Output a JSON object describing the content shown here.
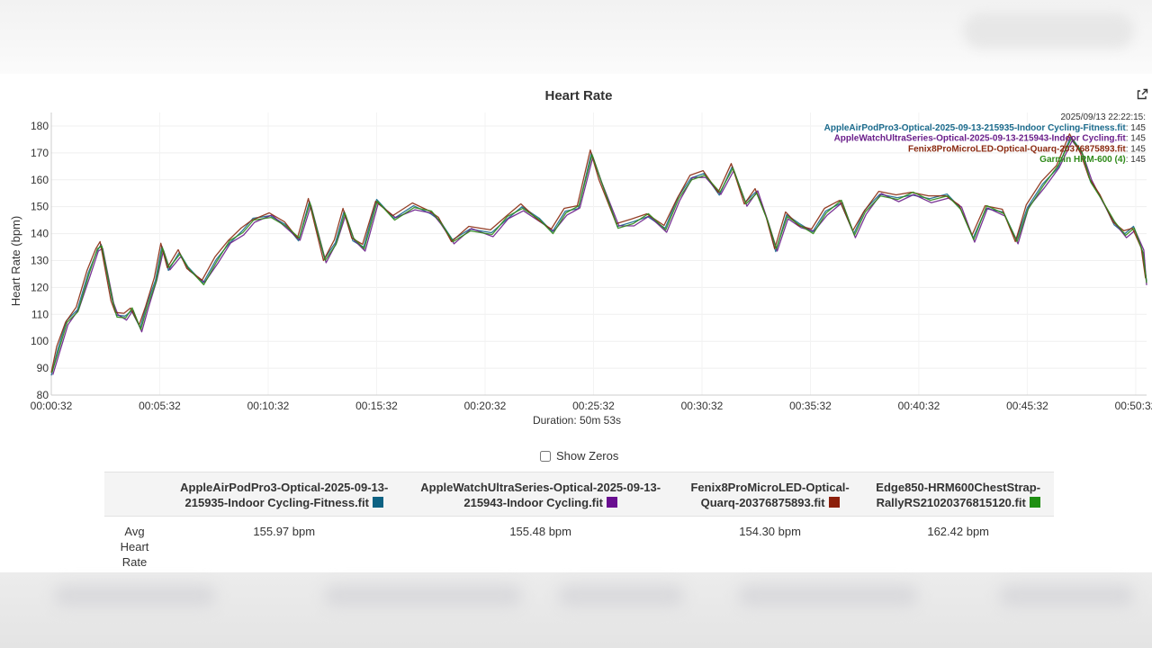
{
  "chart_data": {
    "type": "line",
    "title": "Heart Rate",
    "xlabel": "Duration: 50m 53s",
    "ylabel": "Heart Rate (bpm)",
    "ylim": [
      80,
      185
    ],
    "xlim": [
      0.5,
      51
    ],
    "x_unit": "minutes",
    "yticks": [
      80,
      90,
      100,
      110,
      120,
      130,
      140,
      150,
      160,
      170,
      180
    ],
    "xtick_labels": [
      "00:00:32",
      "00:05:32",
      "00:10:32",
      "00:15:32",
      "00:20:32",
      "00:25:32",
      "00:30:32",
      "00:35:32",
      "00:40:32",
      "00:45:32",
      "00:50:32"
    ],
    "grid": true,
    "legend": "top-right",
    "tooltip": {
      "timestamp": "2025/09/13 22:22:15:",
      "entries": [
        {
          "label": "AppleAirPodPro3-Optical-2025-09-13-215935-Indoor Cycling-Fitness.fit",
          "value": ": 145",
          "color": "#1a6a8c"
        },
        {
          "label": "AppleWatchUltraSeries-Optical-2025-09-13-215943-Indoor Cycling.fit",
          "value": ": 145",
          "color": "#6a1e8a"
        },
        {
          "label": "Fenix8ProMicroLED-Optical-Quarq-20376875893.fit",
          "value": ": 145",
          "color": "#8a2a10"
        },
        {
          "label": "Garmin HRM-600 (4)",
          "value": ": 145",
          "color": "#2f8a1a"
        }
      ]
    },
    "series": [
      {
        "name": "AppleAirPodPro3-Optical-2025-09-13-215935-Indoor Cycling-Fitness.fit",
        "color": "#1a6a8c"
      },
      {
        "name": "AppleWatchUltraSeries-Optical-2025-09-13-215943-Indoor Cycling.fit",
        "color": "#6a1e8a"
      },
      {
        "name": "Fenix8ProMicroLED-Optical-Quarq-20376875893.fit",
        "color": "#8a2a10"
      },
      {
        "name": "Garmin HRM-600 (4)",
        "color": "#2f8a1a"
      }
    ],
    "x": [
      0.5,
      0.8,
      1.2,
      1.7,
      2.2,
      2.6,
      2.8,
      3.3,
      3.5,
      3.9,
      4.2,
      4.6,
      4.9,
      5.3,
      5.6,
      5.9,
      6.4,
      6.8,
      7.5,
      8.1,
      8.7,
      9.3,
      9.8,
      10.6,
      11.3,
      11.9,
      12.4,
      13.1,
      13.6,
      14.0,
      14.4,
      14.9,
      15.5,
      16.3,
      17.2,
      18.0,
      18.4,
      19.0,
      19.8,
      20.8,
      21.5,
      22.2,
      23.0,
      23.6,
      24.2,
      24.8,
      25.4,
      25.8,
      26.6,
      27.3,
      28.0,
      28.8,
      29.4,
      30.0,
      30.6,
      31.3,
      31.9,
      32.5,
      33.0,
      33.5,
      33.9,
      34.4,
      35.0,
      35.6,
      36.2,
      36.9,
      37.5,
      38.0,
      38.7,
      39.5,
      40.2,
      41.0,
      41.8,
      42.4,
      43.0,
      43.6,
      44.4,
      45.0,
      45.5,
      46.2,
      46.9,
      47.5,
      48.0,
      48.4,
      48.9,
      49.5,
      50.0,
      50.4,
      50.8,
      51.0
    ],
    "values": [
      88,
      97,
      107,
      112,
      125,
      134,
      136,
      115,
      110,
      109,
      112,
      105,
      113,
      123,
      135,
      127,
      133,
      127,
      122,
      130,
      137,
      141,
      145,
      147,
      143,
      138,
      152,
      130,
      137,
      148,
      138,
      135,
      152,
      146,
      150,
      148,
      145,
      137,
      142,
      140,
      146,
      150,
      145,
      141,
      148,
      150,
      170,
      160,
      143,
      144,
      147,
      142,
      153,
      161,
      162,
      155,
      165,
      151,
      156,
      145,
      134,
      147,
      143,
      141,
      148,
      152,
      140,
      148,
      155,
      153,
      155,
      153,
      154,
      150,
      138,
      150,
      148,
      137,
      150,
      158,
      165,
      176,
      170,
      160,
      153,
      144,
      140,
      142,
      134,
      122
    ]
  },
  "controls": {
    "show_zeros_label": "Show Zeros"
  },
  "table": {
    "row_label_line1": "Avg",
    "row_label_line2": "Heart",
    "row_label_line3": "Rate",
    "columns": [
      {
        "line1": "AppleAirPodPro3-Optical-2025-09-13-",
        "line2": "215935-Indoor Cycling-Fitness.fit",
        "color": "#0d6283",
        "value": "155.97 bpm"
      },
      {
        "line1": "AppleWatchUltraSeries-Optical-2025-09-13-",
        "line2": "215943-Indoor Cycling.fit",
        "color": "#6a0f91",
        "value": "155.48 bpm"
      },
      {
        "line1": "Fenix8ProMicroLED-Optical-",
        "line2": "Quarq-20376875893.fit",
        "color": "#8c1f0a",
        "value": "154.30 bpm"
      },
      {
        "line1": "Edge850-HRM600ChestStrap-",
        "line2": "RallyRS21020376815120.fit",
        "color": "#1f8f12",
        "value": "162.42 bpm"
      }
    ]
  }
}
